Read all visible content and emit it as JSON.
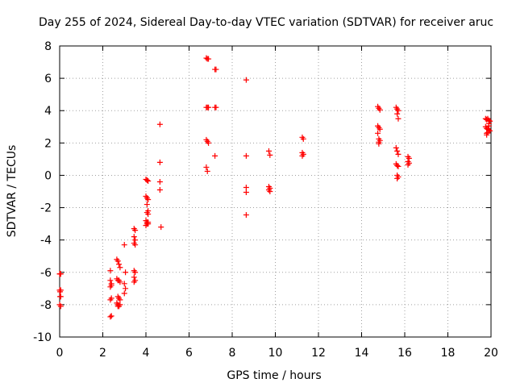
{
  "chart_data": {
    "type": "scatter",
    "title": "Day 255 of 2024, Sidereal Day-to-day VTEC variation (SDTVAR) for receiver aruc",
    "xlabel": "GPS time / hours",
    "ylabel": "SDTVAR / TECUs",
    "xlim": [
      0,
      20
    ],
    "ylim": [
      -10,
      8
    ],
    "xticks": [
      0,
      2,
      4,
      6,
      8,
      10,
      12,
      14,
      16,
      18,
      20
    ],
    "yticks": [
      -10,
      -8,
      -6,
      -4,
      -2,
      0,
      2,
      4,
      6,
      8
    ],
    "grid": true,
    "marker": "plus",
    "color": "#ff0000",
    "series": [
      {
        "name": "SDTVAR",
        "x": [
          0.0,
          0.02,
          0.05,
          0.0,
          0.02,
          0.05,
          0.02,
          0.05,
          0.0,
          0.05,
          2.35,
          2.35,
          2.4,
          2.35,
          2.4,
          2.4,
          2.35,
          2.4,
          2.35,
          2.65,
          2.7,
          2.75,
          2.8,
          2.65,
          2.7,
          2.75,
          2.8,
          2.7,
          2.75,
          2.8,
          2.65,
          2.7,
          2.75,
          2.8,
          2.7,
          3.0,
          3.05,
          3.0,
          3.05,
          3.0,
          3.45,
          3.5,
          3.45,
          3.5,
          3.45,
          3.5,
          3.45,
          3.5,
          3.45,
          3.5,
          3.45,
          4.0,
          4.05,
          4.1,
          4.0,
          4.05,
          4.1,
          4.05,
          4.1,
          4.05,
          4.1,
          4.0,
          4.05,
          4.1,
          4.0,
          4.05,
          4.1,
          4.65,
          4.65,
          4.65,
          4.65,
          4.7,
          6.8,
          6.85,
          6.9,
          6.8,
          6.85,
          6.9,
          6.8,
          6.85,
          6.9,
          6.8,
          6.85,
          7.2,
          7.25,
          7.2,
          7.25,
          7.2,
          8.65,
          8.65,
          8.65,
          8.65,
          8.65,
          9.7,
          9.75,
          9.7,
          9.75,
          9.7,
          9.75,
          11.25,
          11.3,
          11.25,
          11.3,
          11.25,
          14.75,
          14.8,
          14.85,
          14.75,
          14.8,
          14.85,
          14.75,
          14.8,
          14.85,
          14.8,
          14.8,
          15.6,
          15.65,
          15.7,
          15.65,
          15.7,
          15.6,
          15.65,
          15.7,
          15.6,
          15.65,
          15.7,
          15.65,
          15.7,
          15.65,
          16.15,
          16.2,
          16.15,
          16.2,
          16.15,
          19.75,
          19.8,
          19.85,
          19.9,
          19.95,
          19.75,
          19.8,
          19.85,
          19.9,
          19.95,
          19.8,
          19.85,
          19.9,
          19.8,
          19.9
        ],
        "y": [
          -6.1,
          -6.1,
          -6.1,
          -7.1,
          -7.2,
          -7.1,
          -7.5,
          -7.5,
          -8.0,
          -8.1,
          -5.9,
          -6.5,
          -6.7,
          -6.9,
          -6.8,
          -7.6,
          -7.7,
          -8.7,
          -8.75,
          -5.2,
          -5.3,
          -5.5,
          -5.7,
          -6.4,
          -6.5,
          -6.5,
          -6.6,
          -7.5,
          -7.6,
          -7.7,
          -7.9,
          -8.0,
          -8.1,
          -8.0,
          -8.1,
          -4.3,
          -6.0,
          -6.7,
          -7.0,
          -7.3,
          -3.3,
          -3.4,
          -3.8,
          -4.0,
          -4.2,
          -4.3,
          -5.9,
          -6.0,
          -6.3,
          -6.5,
          -6.6,
          -0.25,
          -0.3,
          -0.35,
          -1.3,
          -1.4,
          -1.5,
          -1.8,
          -2.2,
          -2.3,
          -2.4,
          -2.8,
          -2.9,
          -3.0,
          -3.1,
          -3.0,
          -2.9,
          3.15,
          0.8,
          -0.4,
          -0.9,
          -3.2,
          7.25,
          7.2,
          7.2,
          4.2,
          4.2,
          4.2,
          2.2,
          2.1,
          2.0,
          0.5,
          0.25,
          6.55,
          6.55,
          4.2,
          4.2,
          1.2,
          5.9,
          1.2,
          -0.75,
          -1.05,
          -2.45,
          1.5,
          1.25,
          -0.7,
          -0.8,
          -0.9,
          -1.0,
          2.35,
          2.25,
          1.4,
          1.3,
          1.2,
          4.25,
          4.15,
          4.05,
          3.05,
          2.95,
          2.85,
          2.6,
          2.25,
          2.15,
          2.05,
          1.95,
          4.2,
          4.1,
          4.0,
          3.8,
          3.5,
          1.7,
          1.5,
          1.3,
          0.7,
          0.6,
          0.55,
          0.0,
          -0.1,
          -0.2,
          1.15,
          1.05,
          0.85,
          0.75,
          0.65,
          3.5,
          3.45,
          3.5,
          3.4,
          3.35,
          3.0,
          2.9,
          2.85,
          2.8,
          2.75,
          2.6,
          2.65,
          3.2,
          2.5,
          3.05
        ]
      }
    ]
  }
}
